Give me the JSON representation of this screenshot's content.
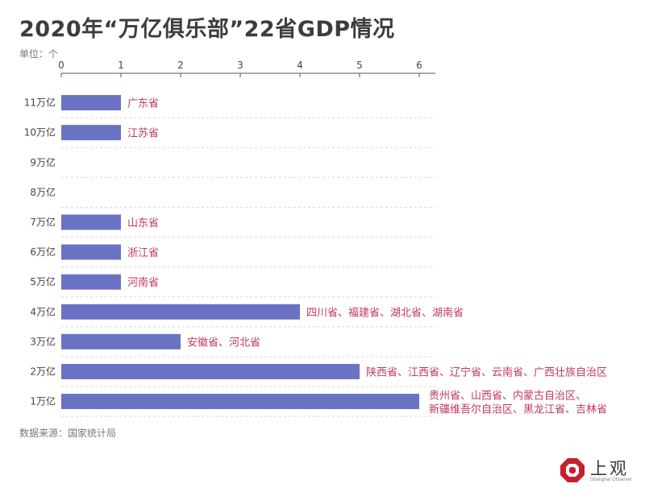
{
  "title": "2020年“万亿俱乐部”22省GDP情况",
  "unit_label": "单位：个",
  "source": "数据来源：国家统计局",
  "logo": {
    "name": "上观",
    "subtitle": "Shanghai Observer"
  },
  "colors": {
    "bar": "#6a72c3",
    "label": "#c0395a",
    "grid": "#d8d8d8",
    "axis": "#555555"
  },
  "chart_data": {
    "type": "bar",
    "orientation": "horizontal",
    "title": "2020年“万亿俱乐部”22省GDP情况",
    "xlabel": "",
    "ylabel": "",
    "xlim": [
      0,
      6
    ],
    "x_ticks": [
      0,
      1,
      2,
      3,
      4,
      5,
      6
    ],
    "grid": "horizontal-dashed",
    "categories": [
      "11万亿",
      "10万亿",
      "9万亿",
      "8万亿",
      "7万亿",
      "6万亿",
      "5万亿",
      "4万亿",
      "3万亿",
      "2万亿",
      "1万亿"
    ],
    "values": [
      1,
      1,
      0,
      0,
      1,
      1,
      1,
      4,
      2,
      5,
      6
    ],
    "labels": [
      [
        "广东省"
      ],
      [
        "江苏省"
      ],
      [],
      [],
      [
        "山东省"
      ],
      [
        "浙江省"
      ],
      [
        "河南省"
      ],
      [
        "四川省、福建省、湖北省、湖南省"
      ],
      [
        "安徽省、河北省"
      ],
      [
        "陕西省、江西省、辽宁省、云南省、广西壮族自治区"
      ],
      [
        "贵州省、山西省、内蒙古自治区、",
        "新疆维吾尔自治区、黑龙江省、吉林省"
      ]
    ]
  }
}
